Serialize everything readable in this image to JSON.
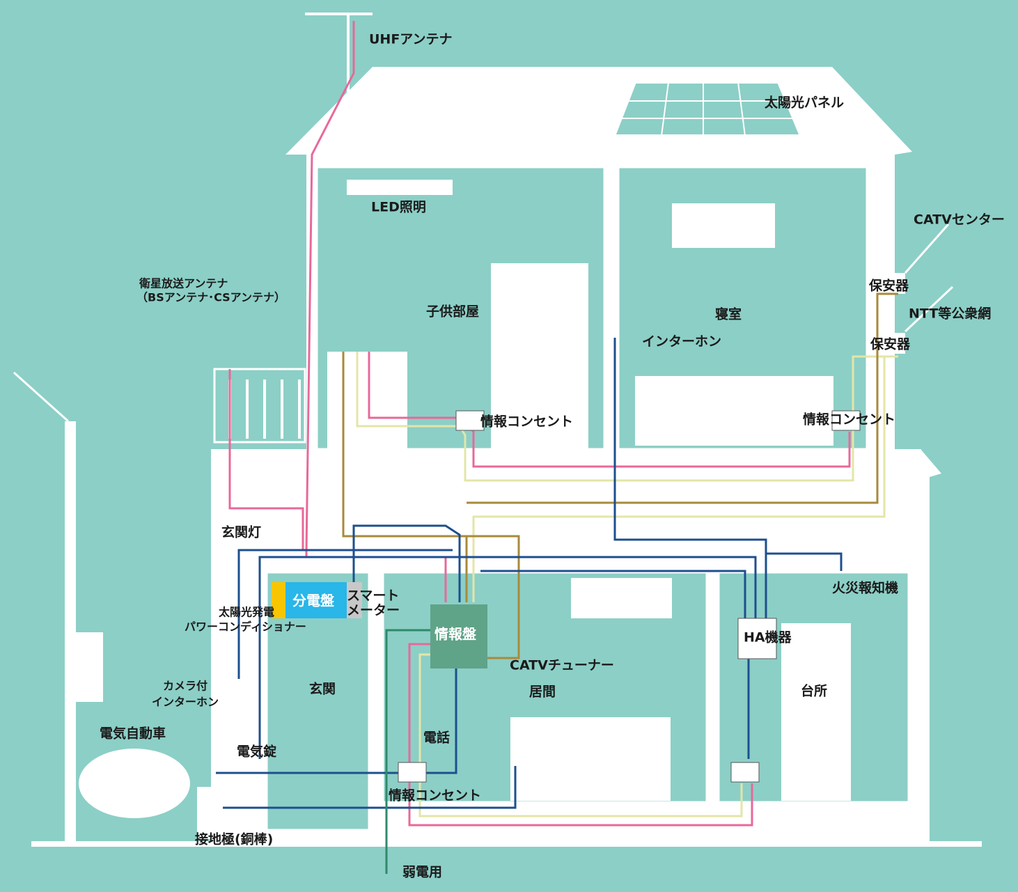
{
  "nodes": [
    {
      "label": "UHFアンテナ"
    },
    {
      "label": "太陽光パネル"
    },
    {
      "label": "LED照明"
    },
    {
      "label": "CATVセンター"
    },
    {
      "label": "保安器"
    },
    {
      "label": "衛星放送アンテナ"
    },
    {
      "label": "（BSアンテナ･CSアンテナ）"
    },
    {
      "label": "子供部屋"
    },
    {
      "label": "寝室"
    },
    {
      "label": "NTT等公衆網"
    },
    {
      "label": "インターホン"
    },
    {
      "label": "保安器"
    },
    {
      "label": "情報コンセント"
    },
    {
      "label": "情報コンセント"
    },
    {
      "label": "玄関灯"
    },
    {
      "label": "分電盤"
    },
    {
      "label": "スマート"
    },
    {
      "label": "メーター"
    },
    {
      "label": "太陽光発電"
    },
    {
      "label": "パワーコンディショナー"
    },
    {
      "label": "火災報知機"
    },
    {
      "label": "情報盤"
    },
    {
      "label": "HA機器"
    },
    {
      "label": "CATVチューナー"
    },
    {
      "label": "カメラ付"
    },
    {
      "label": "インターホン"
    },
    {
      "label": "玄関"
    },
    {
      "label": "居間"
    },
    {
      "label": "台所"
    },
    {
      "label": "電気自動車"
    },
    {
      "label": "電気錠"
    },
    {
      "label": "電話"
    },
    {
      "label": "情報コンセント"
    },
    {
      "label": "接地極(銅棒)"
    },
    {
      "label": "弱電用"
    }
  ]
}
